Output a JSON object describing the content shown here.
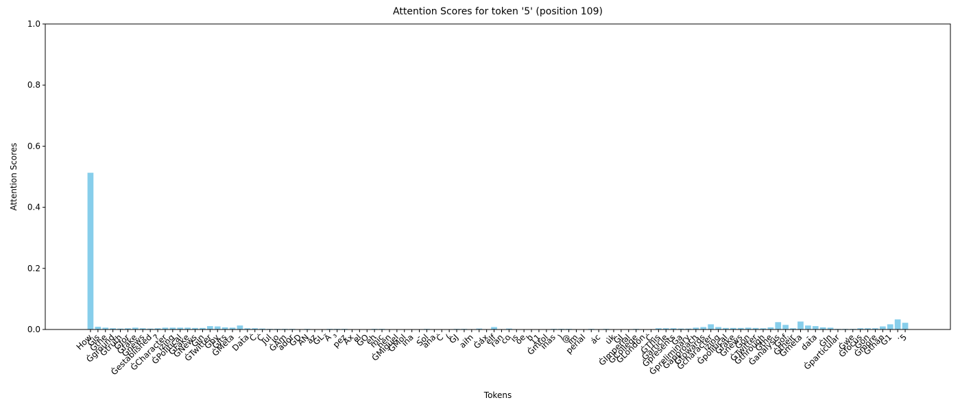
{
  "chart_data": {
    "type": "bar",
    "title": "Attention Scores for token '5' (position 109)",
    "x_label": "Tokens",
    "y_label": "Attention Scores",
    "color": "#87ceeb",
    "grid": false,
    "ylim": [
      0,
      1
    ],
    "yticks": [
      {
        "value": 0,
        "label": "0.0"
      },
      0.2,
      0.4,
      0.6,
      0.8,
      {
        "value": 1,
        "label": "1.0"
      }
    ],
    "categories": [
      "How",
      "Ġis",
      "Ġthe",
      "Ġground",
      "Ġtruth",
      "Ġfor",
      "Ġfake",
      "Ġnews",
      "Ġestablished",
      "?",
      "ĠCharacter",
      "izing",
      "ĠPolitical",
      "ĠFake",
      "ĠNews",
      "Ġin",
      "ĠTwitter",
      "Ġby",
      "Ġits",
      "ĠMeta",
      "-",
      "Data",
      "Ċ",
      "Ċ",
      "Jul",
      "io",
      "ĠAm",
      "ador",
      "ĠD",
      "AN",
      "az",
      "ĠL",
      "Ã",
      "³",
      "pez",
      "Ax",
      "el",
      "ĠO",
      "eh",
      "mic",
      "hen",
      "ĠMiguel",
      "ĠMol",
      "ina",
      "-",
      "Sol",
      "ana",
      "Ċ",
      "(",
      "ĠJ",
      ",",
      "aim",
      ",",
      "Ġax",
      "elf",
      "ran",
      "co",
      "is",
      "oe",
      "h",
      "11",
      "Ġmtol",
      "inas",
      ")",
      "@",
      "im",
      "perial",
      ".",
      "ac",
      ".",
      "uk",
      "ĠJ",
      "ĠImperial",
      "ĠCollege",
      "ĠLondon",
      "Ċ",
      "ĠThis",
      "Ġarticle",
      "Ġpresents",
      "Ġa",
      "Ġpreliminary",
      "Ġapproach",
      "Ġtowards",
      "Ġcharacter",
      "izing",
      "Ġpolitical",
      "Ġfake",
      "Ġnews",
      "Ġon",
      "ĠTwitter",
      "Ġthrough",
      "Ġthe",
      "Ġanalysis",
      "Ġof",
      "Ġtheir",
      "Ġmeta",
      "-",
      "data",
      ".",
      "ĠIn",
      "Ġparticular",
      ",",
      "Ġwe",
      "Ġfocus",
      "Ġon",
      "Ġmore",
      "Ġthan",
      "Ġ1",
      ".",
      "5"
    ],
    "values": [
      0.513,
      0.009,
      0.006,
      0.004,
      0.003,
      0.004,
      0.006,
      0.004,
      0.003,
      0.004,
      0.006,
      0.006,
      0.006,
      0.006,
      0.005,
      0.005,
      0.011,
      0.01,
      0.007,
      0.006,
      0.013,
      0.004,
      0.004,
      0.003,
      0.002,
      0.002,
      0.002,
      0.002,
      0.001,
      0.002,
      0.001,
      0.001,
      0.002,
      0.002,
      0.002,
      0.001,
      0.001,
      0.001,
      0.002,
      0.002,
      0.001,
      0.001,
      0.001,
      0.001,
      0.001,
      0.002,
      0.001,
      0.001,
      0.001,
      0.002,
      0.002,
      0.001,
      0.003,
      0.001,
      0.008,
      0.001,
      0.003,
      0.001,
      0.001,
      0.001,
      0.001,
      0.001,
      0.002,
      0.002,
      0.002,
      0.001,
      0.001,
      0.002,
      0.001,
      0.002,
      0.001,
      0.001,
      0.001,
      0.002,
      0.001,
      0.001,
      0.004,
      0.004,
      0.004,
      0.003,
      0.003,
      0.006,
      0.008,
      0.017,
      0.008,
      0.005,
      0.005,
      0.005,
      0.006,
      0.005,
      0.004,
      0.007,
      0.024,
      0.015,
      0.004,
      0.026,
      0.013,
      0.011,
      0.007,
      0.006,
      0.002,
      0.002,
      0.002,
      0.004,
      0.004,
      0.004,
      0.01,
      0.017,
      0.033,
      0.022
    ]
  }
}
